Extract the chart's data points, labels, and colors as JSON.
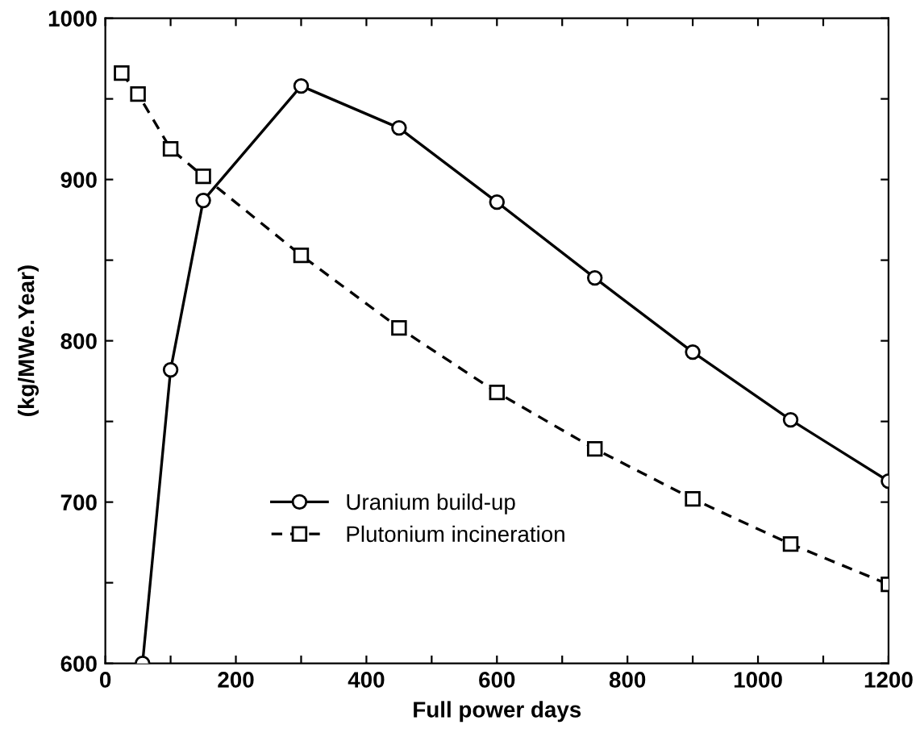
{
  "chart_data": {
    "type": "line",
    "xlabel": "Full power days",
    "ylabel": "(kg/MWe.Year)",
    "xlim": [
      0,
      1200
    ],
    "ylim": [
      600,
      1000
    ],
    "xticks": [
      0,
      {
        "value": 100,
        "label": null
      },
      200,
      {
        "value": 300,
        "label": null
      },
      400,
      {
        "value": 500,
        "label": null
      },
      600,
      {
        "value": 700,
        "label": null
      },
      800,
      {
        "value": 900,
        "label": null
      },
      1000,
      {
        "value": 1100,
        "label": null
      },
      1200
    ],
    "yticks": [
      600,
      {
        "value": 650,
        "label": null
      },
      700,
      {
        "value": 750,
        "label": null
      },
      800,
      {
        "value": 850,
        "label": null
      },
      900,
      {
        "value": 950,
        "label": null
      },
      1000
    ],
    "grid": false,
    "legend": "bottom",
    "series": [
      {
        "name": "Uranium build-up",
        "color": "#000000",
        "marker": "circle",
        "line_style": "solid",
        "x": [
          57,
          100,
          150,
          300,
          450,
          600,
          750,
          900,
          1050,
          1200
        ],
        "values": [
          600,
          782,
          887,
          958,
          932,
          886,
          839,
          793,
          751,
          713
        ]
      },
      {
        "name": "Plutonium incineration",
        "color": "#000000",
        "marker": "square",
        "line_style": "dashed",
        "x": [
          25,
          50,
          100,
          150,
          300,
          450,
          600,
          750,
          900,
          1050,
          1200
        ],
        "values": [
          966,
          953,
          919,
          902,
          853,
          808,
          768,
          733,
          702,
          674,
          649
        ]
      }
    ]
  }
}
